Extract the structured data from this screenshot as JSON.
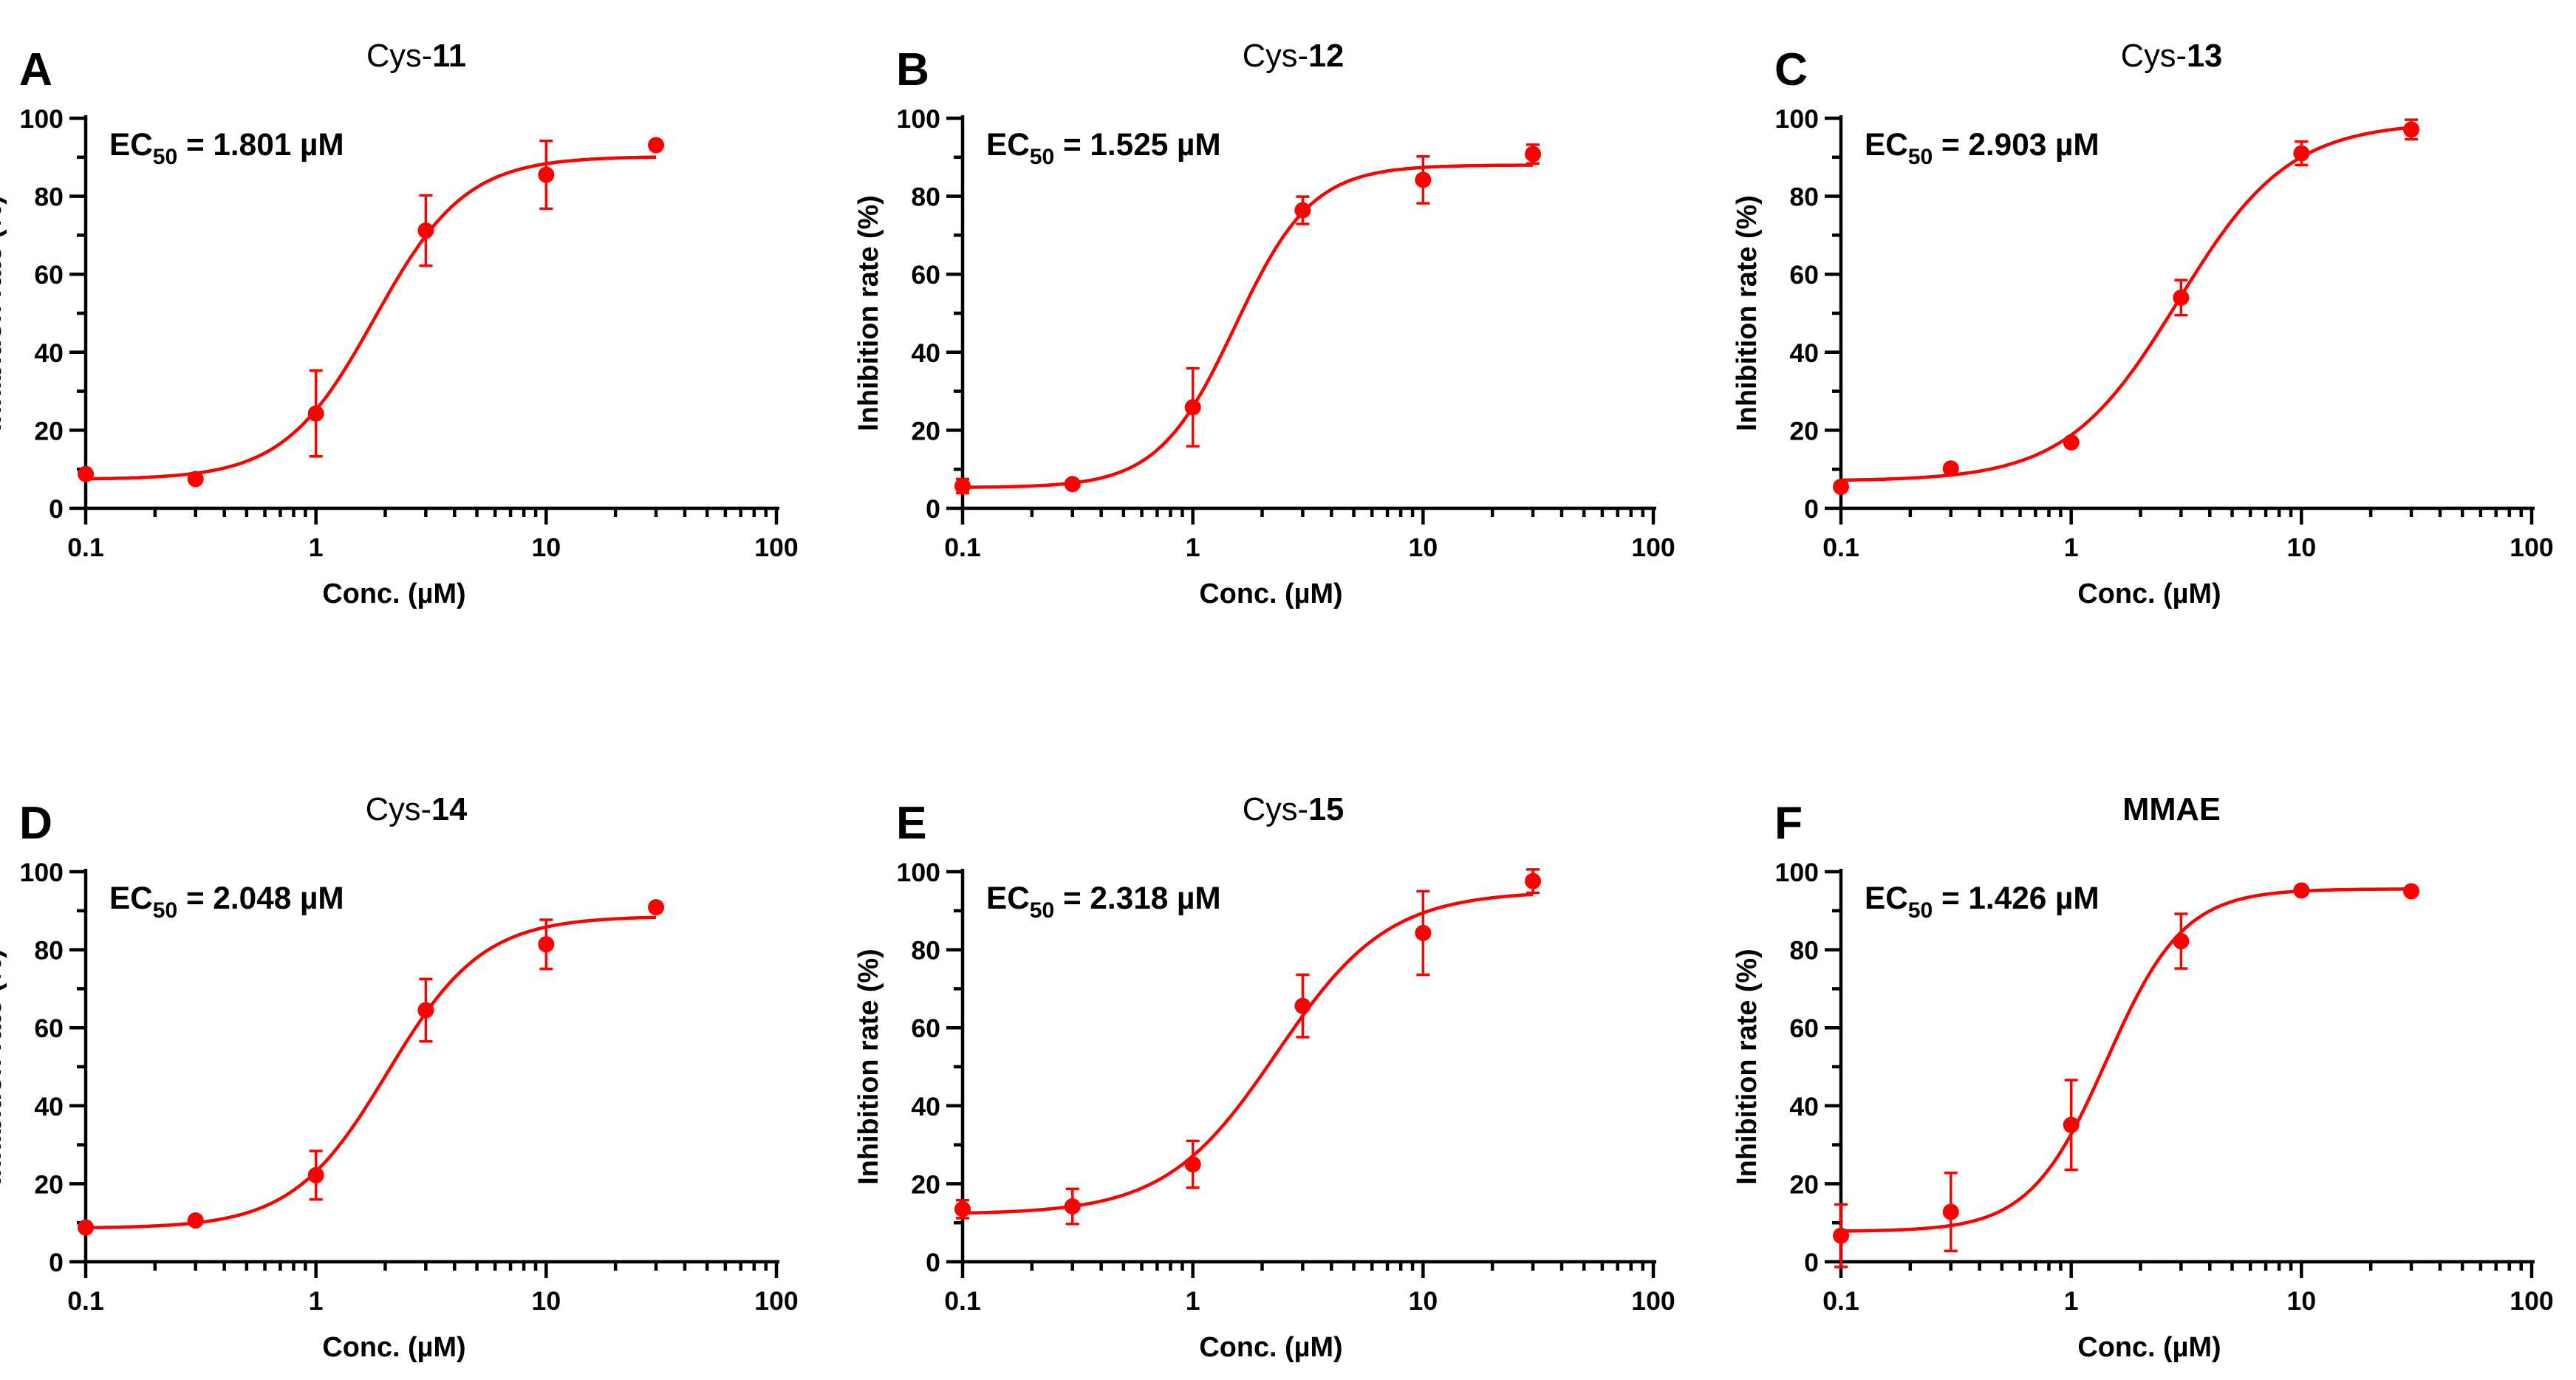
{
  "figure": {
    "series_color": "#ff0000"
  },
  "chart_data": [
    {
      "panel_letter": "A",
      "type": "scatter",
      "title_prefix": "Cys-",
      "title_bold": "11",
      "ec50_label": "EC",
      "ec50_sub": "50",
      "ec50_value": " = 1.801 µM",
      "xlabel": "Conc.  (µM)",
      "ylabel": "Inhibition rate (%)",
      "xscale": "log",
      "xlim": [
        0.1,
        100
      ],
      "ylim": [
        0,
        100
      ],
      "xticks": [
        "0.1",
        "1",
        "10",
        "100"
      ],
      "yticks": [
        "0",
        "20",
        "40",
        "60",
        "80",
        "100"
      ],
      "x": [
        0.1,
        0.3,
        1,
        3,
        10,
        30
      ],
      "y": [
        8.8,
        7.5,
        24.3,
        71.2,
        85.5,
        93.1
      ],
      "err": [
        0.8,
        0.8,
        11.0,
        9.0,
        8.7,
        0.8
      ],
      "fit": {
        "bottom": 7.4,
        "top": 90.2,
        "ec50": 1.801,
        "hill": 2.2
      }
    },
    {
      "panel_letter": "B",
      "type": "scatter",
      "title_prefix": "Cys-",
      "title_bold": "12",
      "ec50_label": "EC",
      "ec50_sub": "50",
      "ec50_value": " = 1.525 µM",
      "xlabel": "Conc.  (µM)",
      "ylabel": "Inhibition rate (%)",
      "xscale": "log",
      "xlim": [
        0.1,
        100
      ],
      "ylim": [
        0,
        100
      ],
      "xticks": [
        "0.1",
        "1",
        "10",
        "100"
      ],
      "yticks": [
        "0",
        "20",
        "40",
        "60",
        "80",
        "100"
      ],
      "x": [
        0.1,
        0.3,
        1,
        3,
        10,
        30
      ],
      "y": [
        5.7,
        6.2,
        25.9,
        76.4,
        84.2,
        90.8
      ],
      "err": [
        1.8,
        0.8,
        10.0,
        3.5,
        6.0,
        2.4
      ],
      "fit": {
        "bottom": 5.3,
        "top": 88.0,
        "ec50": 1.525,
        "hill": 2.6
      }
    },
    {
      "panel_letter": "C",
      "type": "scatter",
      "title_prefix": "Cys-",
      "title_bold": "13",
      "ec50_label": "EC",
      "ec50_sub": "50",
      "ec50_value": " = 2.903 µM",
      "xlabel": "Conc.  (µM)",
      "ylabel": "Inhibition rate (%)",
      "xscale": "log",
      "xlim": [
        0.1,
        100
      ],
      "ylim": [
        0,
        100
      ],
      "xticks": [
        "0.1",
        "1",
        "10",
        "100"
      ],
      "yticks": [
        "0",
        "20",
        "40",
        "60",
        "80",
        "100"
      ],
      "x": [
        0.1,
        0.3,
        1,
        3,
        10,
        30
      ],
      "y": [
        5.5,
        10.2,
        16.9,
        54.0,
        91.0,
        97.1
      ],
      "err": [
        0.8,
        0.8,
        0.8,
        4.5,
        3.0,
        2.5
      ],
      "fit": {
        "bottom": 7.0,
        "top": 99.0,
        "ec50": 2.903,
        "hill": 1.8
      }
    },
    {
      "panel_letter": "D",
      "type": "scatter",
      "title_prefix": "Cys-",
      "title_bold": "14",
      "ec50_label": "EC",
      "ec50_sub": "50",
      "ec50_value": " = 2.048 µM",
      "xlabel": "Conc.  (µM)",
      "ylabel": "Inhibition rate (%)",
      "xscale": "log",
      "xlim": [
        0.1,
        100
      ],
      "ylim": [
        0,
        100
      ],
      "xticks": [
        "0.1",
        "1",
        "10",
        "100"
      ],
      "yticks": [
        "0",
        "20",
        "40",
        "60",
        "80",
        "100"
      ],
      "x": [
        0.1,
        0.3,
        1,
        3,
        10,
        30
      ],
      "y": [
        8.8,
        10.6,
        22.2,
        64.5,
        81.4,
        90.9
      ],
      "err": [
        0.8,
        0.8,
        6.2,
        8.0,
        6.3,
        0.8
      ],
      "fit": {
        "bottom": 8.6,
        "top": 88.6,
        "ec50": 2.048,
        "hill": 2.1
      }
    },
    {
      "panel_letter": "E",
      "type": "scatter",
      "title_prefix": "Cys-",
      "title_bold": "15",
      "ec50_label": "EC",
      "ec50_sub": "50",
      "ec50_value": " = 2.318 µM",
      "xlabel": "Conc.  (µM)",
      "ylabel": "Inhibition rate (%)",
      "xscale": "log",
      "xlim": [
        0.1,
        100
      ],
      "ylim": [
        0,
        100
      ],
      "xticks": [
        "0.1",
        "1",
        "10",
        "100"
      ],
      "yticks": [
        "0",
        "20",
        "40",
        "60",
        "80",
        "100"
      ],
      "x": [
        0.1,
        0.3,
        1,
        3,
        10,
        30
      ],
      "y": [
        13.5,
        14.2,
        25.0,
        65.6,
        84.3,
        97.6
      ],
      "err": [
        2.3,
        4.5,
        6.0,
        8.0,
        10.7,
        3.0
      ],
      "fit": {
        "bottom": 12.2,
        "top": 95.0,
        "ec50": 2.318,
        "hill": 1.8
      }
    },
    {
      "panel_letter": "F",
      "type": "scatter",
      "title_prefix": "",
      "title_bold": "MMAE",
      "ec50_label": "EC",
      "ec50_sub": "50",
      "ec50_value": " = 1.426 µM",
      "xlabel": "Conc.  (µM)",
      "ylabel": "Inhibition rate (%)",
      "xscale": "log",
      "xlim": [
        0.1,
        100
      ],
      "ylim": [
        0,
        100
      ],
      "xticks": [
        "0.1",
        "1",
        "10",
        "100"
      ],
      "yticks": [
        "0",
        "20",
        "40",
        "60",
        "80",
        "100"
      ],
      "x": [
        0.1,
        0.3,
        1,
        3,
        10,
        30
      ],
      "y": [
        6.7,
        12.8,
        35.1,
        82.2,
        95.2,
        95.0
      ],
      "err": [
        8.0,
        10.0,
        11.5,
        7.0,
        0.8,
        0.8
      ],
      "fit": {
        "bottom": 7.8,
        "top": 95.6,
        "ec50": 1.426,
        "hill": 2.6
      }
    }
  ]
}
